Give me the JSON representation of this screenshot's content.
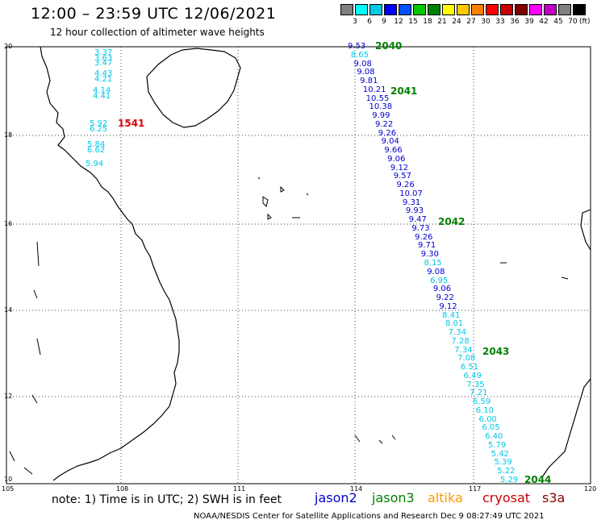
{
  "header": {
    "title": "12:00 – 23:59 UTC 12/06/2021",
    "subtitle": "12 hour collection of altimeter wave heights"
  },
  "legend": {
    "colors": [
      "#808080",
      "#00ffff",
      "#00c8e6",
      "#0000ff",
      "#0050ff",
      "#00c800",
      "#008000",
      "#ffff00",
      "#ffc800",
      "#ff8000",
      "#ff0000",
      "#c80000",
      "#800000",
      "#ff00ff",
      "#c000c0",
      "#808080",
      "#000000"
    ],
    "labels": [
      "3",
      "6",
      "9",
      "12",
      "15",
      "18",
      "21",
      "24",
      "27",
      "30",
      "33",
      "36",
      "39",
      "42",
      "45",
      "70"
    ],
    "unit": "(ft)"
  },
  "axes": {
    "x_ticks": [
      "105",
      "108",
      "111",
      "114",
      "117",
      "120"
    ],
    "y_ticks": [
      "20",
      "18",
      "16",
      "14",
      "12",
      "10"
    ]
  },
  "footer": {
    "note": "note:  1) Time is in UTC;  2) SWH is in feet",
    "satellites": [
      {
        "name": "jason2",
        "color": "#0000cc"
      },
      {
        "name": "jason3",
        "color": "#008000"
      },
      {
        "name": "altika",
        "color": "#ff9900"
      },
      {
        "name": "cryosat",
        "color": "#cc0000"
      },
      {
        "name": "s3a",
        "color": "#880000"
      }
    ],
    "credit": "NOAA/NESDIS Center for Satellite Applications and Research    Dec  9 08:27:49 UTC 2021"
  },
  "observations": {
    "coastal_track": {
      "color": "#00c8e6",
      "values": [
        "3.37",
        "3.63",
        "3.47",
        "4.43",
        "4.21",
        "4.14",
        "4.41",
        "5.92",
        "6.25",
        "5.84",
        "6.62",
        "5.94"
      ],
      "time_label": {
        "text": "1541",
        "color": "#dd0000"
      }
    },
    "offshore_track": {
      "values": [
        {
          "v": "9.53",
          "c": "#0000cc"
        },
        {
          "v": "8.65",
          "c": "#00c8e6"
        },
        {
          "v": "9.08",
          "c": "#0000cc"
        },
        {
          "v": "9.08",
          "c": "#0000cc"
        },
        {
          "v": "9.81",
          "c": "#0000cc"
        },
        {
          "v": "10.21",
          "c": "#0000cc"
        },
        {
          "v": "10.55",
          "c": "#0000cc"
        },
        {
          "v": "10.38",
          "c": "#0000cc"
        },
        {
          "v": "9.99",
          "c": "#0000cc"
        },
        {
          "v": "9.22",
          "c": "#0000cc"
        },
        {
          "v": "9.26",
          "c": "#0000cc"
        },
        {
          "v": "9.04",
          "c": "#0000cc"
        },
        {
          "v": "9.66",
          "c": "#0000cc"
        },
        {
          "v": "9.06",
          "c": "#0000cc"
        },
        {
          "v": "9.12",
          "c": "#0000cc"
        },
        {
          "v": "9.57",
          "c": "#0000cc"
        },
        {
          "v": "9.26",
          "c": "#0000cc"
        },
        {
          "v": "10.07",
          "c": "#0000cc"
        },
        {
          "v": "9.31",
          "c": "#0000cc"
        },
        {
          "v": "9.93",
          "c": "#0000cc"
        },
        {
          "v": "9.47",
          "c": "#0000cc"
        },
        {
          "v": "9.73",
          "c": "#0000cc"
        },
        {
          "v": "9.26",
          "c": "#0000cc"
        },
        {
          "v": "9.71",
          "c": "#0000cc"
        },
        {
          "v": "9.30",
          "c": "#0000cc"
        },
        {
          "v": "8.15",
          "c": "#00c8e6"
        },
        {
          "v": "9.08",
          "c": "#0000cc"
        },
        {
          "v": "6.95",
          "c": "#00c8e6"
        },
        {
          "v": "9.06",
          "c": "#0000cc"
        },
        {
          "v": "9.22",
          "c": "#0000cc"
        },
        {
          "v": "9.12",
          "c": "#0000cc"
        },
        {
          "v": "8.41",
          "c": "#00c8e6"
        },
        {
          "v": "8.01",
          "c": "#00c8e6"
        },
        {
          "v": "7.34",
          "c": "#00c8e6"
        },
        {
          "v": "7.28",
          "c": "#00c8e6"
        },
        {
          "v": "7.34",
          "c": "#00c8e6"
        },
        {
          "v": "7.08",
          "c": "#00c8e6"
        },
        {
          "v": "6.51",
          "c": "#00c8e6"
        },
        {
          "v": "6.49",
          "c": "#00c8e6"
        },
        {
          "v": "7.35",
          "c": "#00c8e6"
        },
        {
          "v": "7.21",
          "c": "#00c8e6"
        },
        {
          "v": "6.59",
          "c": "#00c8e6"
        },
        {
          "v": "6.10",
          "c": "#00c8e6"
        },
        {
          "v": "6.00",
          "c": "#00c8e6"
        },
        {
          "v": "6.05",
          "c": "#00c8e6"
        },
        {
          "v": "6.40",
          "c": "#00c8e6"
        },
        {
          "v": "5.79",
          "c": "#00c8e6"
        },
        {
          "v": "5.42",
          "c": "#00c8e6"
        },
        {
          "v": "5.39",
          "c": "#00c8e6"
        },
        {
          "v": "5.22",
          "c": "#00c8e6"
        },
        {
          "v": "5.29",
          "c": "#00c8e6"
        }
      ],
      "time_labels": [
        {
          "text": "2040",
          "color": "#008000"
        },
        {
          "text": "2041",
          "color": "#008000"
        },
        {
          "text": "2042",
          "color": "#008000"
        },
        {
          "text": "2043",
          "color": "#008000"
        },
        {
          "text": "2044",
          "color": "#008000"
        }
      ]
    }
  }
}
